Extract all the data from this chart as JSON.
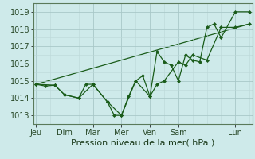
{
  "xlabel": "Pression niveau de la mer( hPa )",
  "background_color": "#ceeaea",
  "grid_major_color": "#a8c8c8",
  "grid_minor_color": "#bcd8d8",
  "line_color": "#1a5c1a",
  "ylim": [
    1012.5,
    1019.5
  ],
  "yticks": [
    1013,
    1014,
    1015,
    1016,
    1017,
    1018,
    1019
  ],
  "day_labels": [
    "Jeu",
    "Dim",
    "Mar",
    "Mer",
    "Ven",
    "Sam",
    "Lun"
  ],
  "day_positions": [
    0,
    1,
    2,
    3,
    4,
    5,
    7
  ],
  "xlim": [
    -0.1,
    7.6
  ],
  "series1_x": [
    0,
    0.33,
    0.66,
    1.0,
    1.5,
    1.75,
    2.0,
    2.5,
    2.75,
    3.0,
    3.25,
    3.5,
    3.75,
    4.0,
    4.25,
    4.5,
    5.0,
    5.25,
    5.5,
    6.0,
    6.5,
    7.0,
    7.5
  ],
  "series1_y": [
    1014.8,
    1014.7,
    1014.75,
    1014.2,
    1014.0,
    1014.8,
    1014.8,
    1013.8,
    1013.0,
    1013.0,
    1014.1,
    1015.0,
    1015.3,
    1014.1,
    1014.8,
    1015.0,
    1016.1,
    1015.9,
    1016.5,
    1016.2,
    1018.1,
    1018.1,
    1018.3
  ],
  "series2_x": [
    0,
    0.66,
    1.0,
    1.5,
    2.0,
    2.5,
    3.0,
    3.5,
    4.0,
    4.25,
    4.5,
    4.75,
    5.0,
    5.25,
    5.5,
    5.75,
    6.0,
    6.25,
    6.5,
    7.0,
    7.5
  ],
  "series2_y": [
    1014.8,
    1014.75,
    1014.2,
    1014.0,
    1014.8,
    1013.8,
    1013.0,
    1015.0,
    1014.1,
    1016.7,
    1016.1,
    1015.9,
    1015.0,
    1016.5,
    1016.2,
    1016.1,
    1018.1,
    1018.3,
    1017.5,
    1019.0,
    1019.0
  ],
  "trend_x": [
    0,
    7.5
  ],
  "trend_y": [
    1014.8,
    1018.3
  ],
  "xlabel_fontsize": 8,
  "tick_fontsize": 7
}
